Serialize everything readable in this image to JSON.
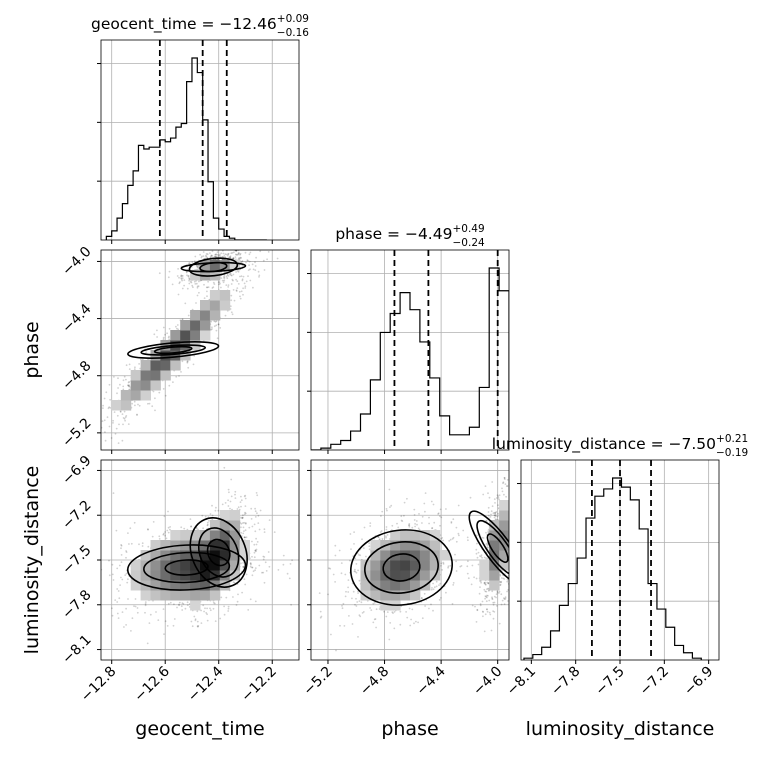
{
  "chart_data": {
    "type": "corner",
    "parameters": [
      {
        "name": "geocent_time",
        "label": "geocent_time",
        "median": -12.46,
        "plus": 0.09,
        "minus": 0.16,
        "title_main": "geocent_time = −12.46",
        "title_sup": "+0.09",
        "title_sub": "−0.16",
        "range": [
          -12.84,
          -12.1
        ],
        "ticks": [
          -12.8,
          -12.6,
          -12.4,
          -12.2
        ],
        "tick_labels": [
          "−12.8",
          "−12.6",
          "−12.4",
          "−12.2"
        ],
        "quantiles": [
          -12.62,
          -12.46,
          -12.37
        ]
      },
      {
        "name": "phase",
        "label": "phase",
        "median": -4.49,
        "plus": 0.49,
        "minus": 0.24,
        "title_main": "phase = −4.49",
        "title_sup": "+0.49",
        "title_sub": "−0.24",
        "range": [
          -5.32,
          -3.92
        ],
        "ticks": [
          -5.2,
          -4.8,
          -4.4,
          -4.0
        ],
        "tick_labels": [
          "−5.2",
          "−4.8",
          "−4.4",
          "−4.0"
        ],
        "quantiles": [
          -4.73,
          -4.49,
          -4.0
        ]
      },
      {
        "name": "luminosity_distance",
        "label": "luminosity_distance",
        "median": -7.5,
        "plus": 0.21,
        "minus": 0.19,
        "title_main": "luminosity_distance = −7.50",
        "title_sup": "+0.21",
        "title_sub": "−0.19",
        "range": [
          -8.17,
          -6.83
        ],
        "ticks": [
          -8.1,
          -7.8,
          -7.5,
          -7.2,
          -6.9
        ],
        "tick_labels": [
          "−8.1",
          "−7.8",
          "−7.5",
          "−7.2",
          "−6.9"
        ],
        "quantiles": [
          -7.69,
          -7.5,
          -7.29
        ]
      }
    ],
    "histograms": [
      {
        "parameter": "geocent_time",
        "bin_edges": [
          -12.82,
          -12.8,
          -12.78,
          -12.76,
          -12.74,
          -12.72,
          -12.7,
          -12.68,
          -12.66,
          -12.64,
          -12.62,
          -12.6,
          -12.58,
          -12.56,
          -12.54,
          -12.52,
          -12.5,
          -12.48,
          -12.46,
          -12.44,
          -12.42,
          -12.4,
          -12.38,
          -12.36,
          -12.34,
          -12.32,
          -12.3,
          -12.28,
          -12.26,
          -12.24,
          -12.22
        ],
        "counts": [
          0.02,
          0.05,
          0.12,
          0.2,
          0.3,
          0.38,
          0.52,
          0.5,
          0.51,
          0.51,
          0.55,
          0.54,
          0.56,
          0.62,
          0.64,
          0.87,
          1.0,
          0.92,
          0.66,
          0.32,
          0.12,
          0.06,
          0.02,
          0.01,
          0.0,
          0.0,
          0.0,
          0.0,
          0.0,
          0.0
        ]
      },
      {
        "parameter": "phase",
        "bin_edges": [
          -5.32,
          -5.25,
          -5.18,
          -5.11,
          -5.04,
          -4.97,
          -4.9,
          -4.83,
          -4.76,
          -4.69,
          -4.62,
          -4.55,
          -4.48,
          -4.41,
          -4.34,
          -4.27,
          -4.2,
          -4.13,
          -4.06,
          -3.99,
          -3.92
        ],
        "counts": [
          0.0,
          0.01,
          0.03,
          0.05,
          0.1,
          0.19,
          0.37,
          0.62,
          0.72,
          0.83,
          0.74,
          0.57,
          0.38,
          0.18,
          0.08,
          0.08,
          0.12,
          0.33,
          0.96,
          0.84
        ]
      },
      {
        "parameter": "luminosity_distance",
        "bin_edges": [
          -8.15,
          -8.09,
          -8.03,
          -7.97,
          -7.91,
          -7.85,
          -7.79,
          -7.73,
          -7.67,
          -7.61,
          -7.55,
          -7.49,
          -7.43,
          -7.37,
          -7.31,
          -7.25,
          -7.19,
          -7.13,
          -7.07,
          -7.01,
          -6.95
        ],
        "counts": [
          0.01,
          0.03,
          0.07,
          0.16,
          0.3,
          0.42,
          0.56,
          0.78,
          0.9,
          0.94,
          1.0,
          0.95,
          0.88,
          0.72,
          0.42,
          0.28,
          0.18,
          0.08,
          0.04,
          0.01
        ]
      }
    ],
    "contour_panels": [
      {
        "x": "geocent_time",
        "y": "phase",
        "modes": [
          {
            "center": [
              -12.42,
              -4.04
            ],
            "spread": [
              0.05,
              0.05
            ],
            "rho": 0.5,
            "weight": 0.45,
            "contours": [
              [
                0.12,
                0.03
              ],
              [
                0.09,
                0.06
              ],
              [
                0.05,
                0.03
              ]
            ]
          },
          {
            "center": [
              -12.57,
              -4.62
            ],
            "spread": [
              0.13,
              0.26
            ],
            "rho": 0.95,
            "weight": 0.55,
            "contours": [
              [
                0.17,
                0.05
              ],
              [
                0.12,
                0.03
              ],
              [
                0.07,
                0.02
              ]
            ]
          }
        ]
      },
      {
        "x": "geocent_time",
        "y": "luminosity_distance",
        "modes": [
          {
            "center": [
              -12.52,
              -7.55
            ],
            "spread": [
              0.12,
              0.14
            ],
            "rho": 0.2,
            "weight": 0.55,
            "contours": [
              [
                0.22,
                0.15
              ],
              [
                0.16,
                0.1
              ],
              [
                0.08,
                0.05
              ]
            ]
          },
          {
            "center": [
              -12.4,
              -7.45
            ],
            "spread": [
              0.05,
              0.16
            ],
            "rho": 0.6,
            "weight": 0.45,
            "contours": [
              [
                0.1,
                0.24
              ],
              [
                0.07,
                0.17
              ],
              [
                0.04,
                0.09
              ]
            ]
          }
        ]
      },
      {
        "x": "phase",
        "y": "luminosity_distance",
        "modes": [
          {
            "center": [
              -4.68,
              -7.55
            ],
            "spread": [
              0.18,
              0.15
            ],
            "rho": 0.3,
            "weight": 0.55,
            "contours": [
              [
                0.36,
                0.25
              ],
              [
                0.26,
                0.17
              ],
              [
                0.13,
                0.09
              ]
            ]
          },
          {
            "center": [
              -4.0,
              -7.42
            ],
            "spread": [
              0.06,
              0.18
            ],
            "rho": 0.5,
            "weight": 0.45,
            "contours": [
              [
                0.09,
                0.3
              ],
              [
                0.07,
                0.22
              ],
              [
                0.04,
                0.11
              ]
            ]
          }
        ]
      }
    ]
  }
}
